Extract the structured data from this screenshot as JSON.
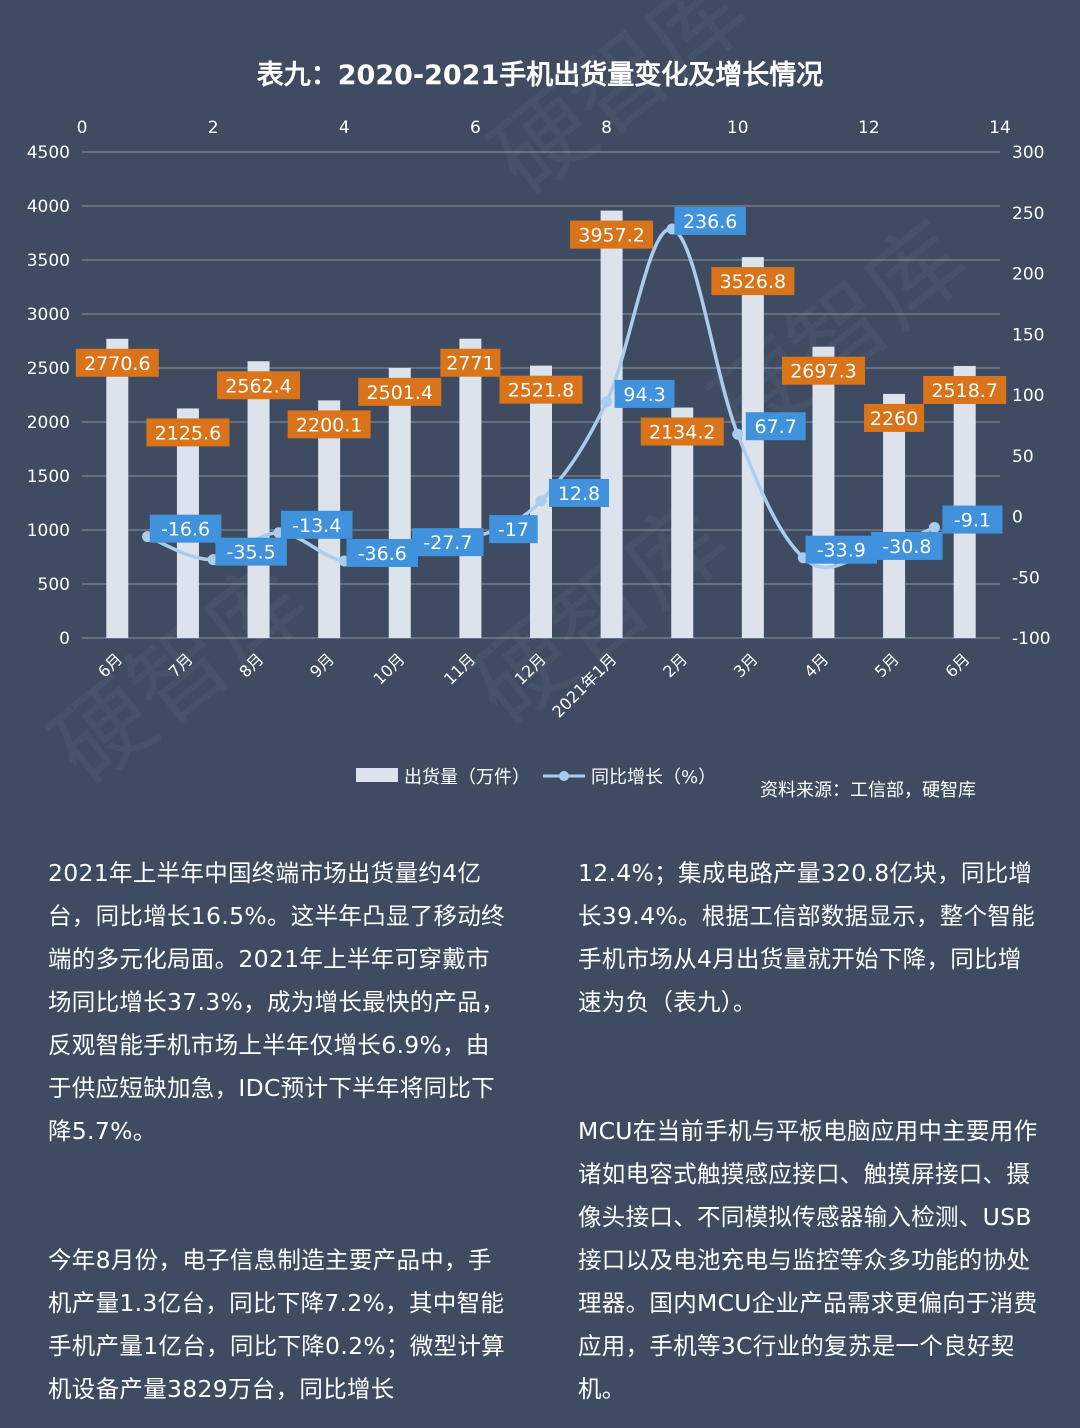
{
  "chart_data": {
    "type": "bar+line",
    "title": "表九：2020-2021手机出货量变化及增长情况",
    "categories": [
      "6月",
      "7月",
      "8月",
      "9月",
      "10月",
      "11月",
      "12月",
      "2021年1月",
      "2月",
      "3月",
      "4月",
      "5月",
      "6月"
    ],
    "series": [
      {
        "name": "出货量（万件）",
        "type": "bar",
        "axis": "left",
        "values": [
          2770.6,
          2125.6,
          2562.4,
          2200.1,
          2501.4,
          2771,
          2521.8,
          3957.2,
          2134.2,
          3526.8,
          2697.3,
          2260,
          2518.7
        ],
        "labels": [
          "2770.6",
          "2125.6",
          "2562.4",
          "2200.1",
          "2501.4",
          "2771",
          "2521.8",
          "3957.2",
          "2134.2",
          "3526.8",
          "2697.3",
          "2260",
          "2518.7"
        ]
      },
      {
        "name": "同比增长（%）",
        "type": "line",
        "axis": "right",
        "x": [
          1,
          2,
          3,
          4,
          5,
          6,
          7,
          8,
          9,
          10,
          11,
          12,
          13
        ],
        "values": [
          -16.6,
          -35.5,
          -13.4,
          -36.6,
          -27.7,
          -17,
          12.8,
          94.3,
          236.6,
          67.7,
          -33.9,
          -30.8,
          -9.1
        ],
        "labels": [
          "-16.6",
          "-35.5",
          "-13.4",
          "-36.6",
          "-27.7",
          "-17",
          "12.8",
          "94.3",
          "236.6",
          "67.7",
          "-33.9",
          "-30.8",
          "-9.1"
        ]
      }
    ],
    "y_left": {
      "min": 0,
      "max": 4500,
      "ticks": [
        "0",
        "500",
        "1000",
        "1500",
        "2000",
        "2500",
        "3000",
        "3500",
        "4000",
        "4500"
      ]
    },
    "y_right": {
      "min": -100,
      "max": 300,
      "ticks": [
        "-100",
        "-50",
        "0",
        "50",
        "100",
        "150",
        "200",
        "250",
        "300"
      ]
    },
    "x_top": {
      "min": 0,
      "max": 14,
      "ticks": [
        "0",
        "2",
        "4",
        "6",
        "8",
        "10",
        "12",
        "14"
      ]
    },
    "grid": true,
    "legend_position": "bottom",
    "source": "资料来源：工信部，硬智库",
    "colors": {
      "background": "#3e4b61",
      "bar": "#dde3ec",
      "bar_label": "#d9741a",
      "line": "#aacdee",
      "line_label": "#3f92db",
      "grid": "#8a96a8"
    }
  },
  "watermark": "硬智库",
  "article": {
    "left": [
      "2021年上半年中国终端市场出货量约4亿台，同比增长16.5%。这半年凸显了移动终端的多元化局面。2021年上半年可穿戴市场同比增长37.3%，成为增长最快的产品，反观智能手机市场上半年仅增长6.9%，由于供应短缺加急，IDC预计下半年将同比下降5.7%。",
      "今年8月份，电子信息制造主要产品中，手机产量1.3亿台，同比下降7.2%，其中智能手机产量1亿台，同比下降0.2%；微型计算机设备产量3829万台，同比增长"
    ],
    "right": [
      "12.4%；集成电路产量320.8亿块，同比增长39.4%。根据工信部数据显示，整个智能手机市场从4月出货量就开始下降，同比增速为负（表九）。",
      "MCU在当前手机与平板电脑应用中主要用作诸如电容式触摸感应接口、触摸屏接口、摄像头接口、不同模拟传感器输入检测、USB接口以及电池充电与监控等众多功能的协处理器。国内MCU企业产品需求更偏向于消费应用，手机等3C行业的复苏是一个良好契机。"
    ]
  }
}
